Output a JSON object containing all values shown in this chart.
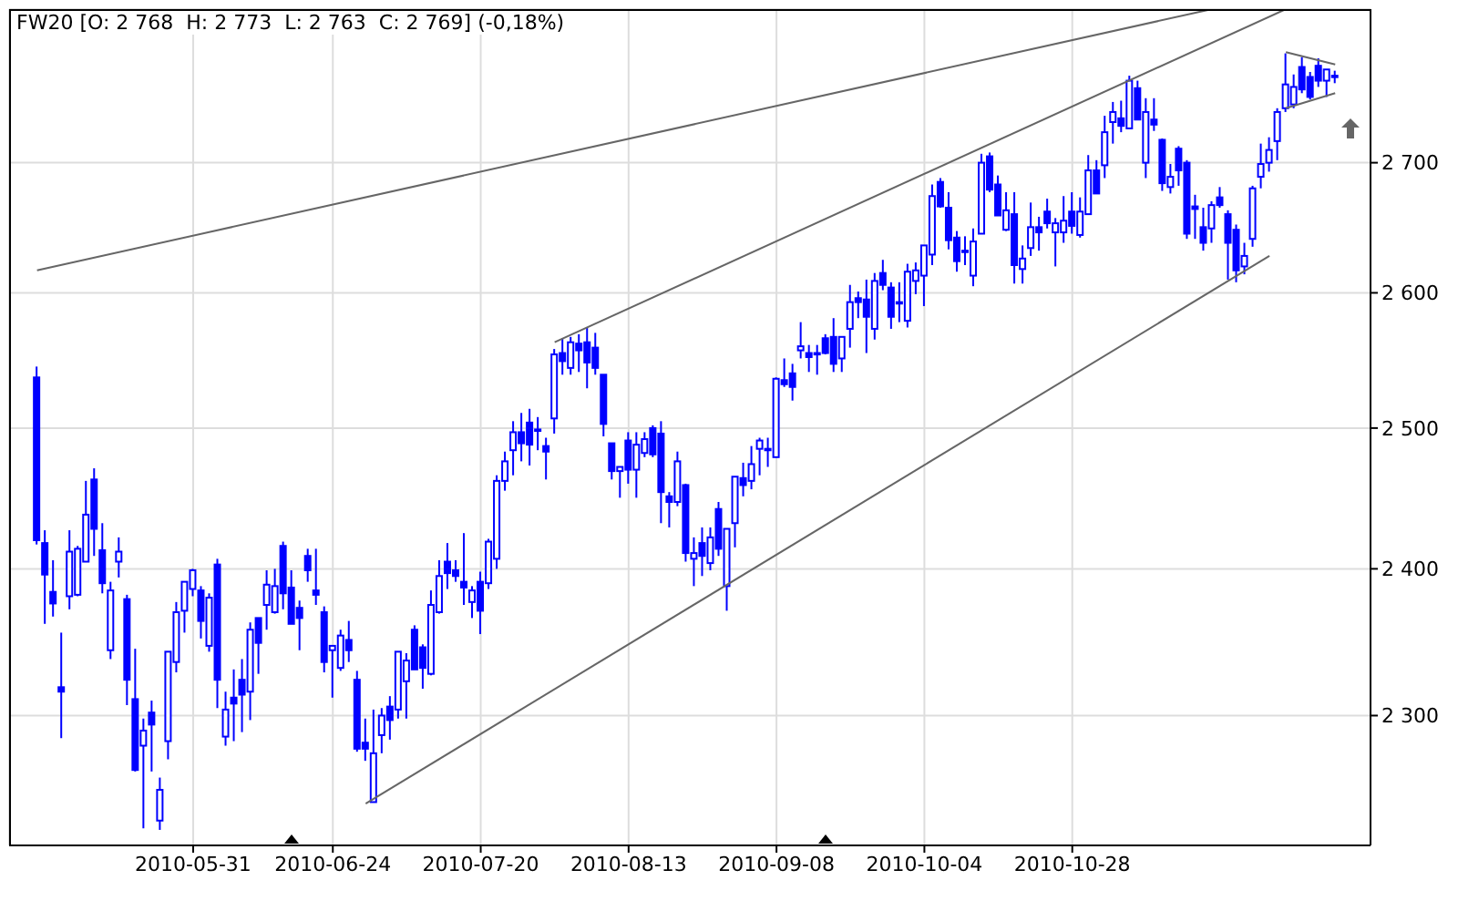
{
  "chart_data": {
    "type": "candlestick",
    "title": "FW20 [O: 2 768  H: 2 773  L: 2 763  C: 2 769] (-0,18%)",
    "color": "#0000ff",
    "log": "y",
    "grid": true,
    "categories": [
      null,
      null,
      null,
      null,
      null,
      null,
      null,
      null,
      null,
      null,
      null,
      null,
      null,
      null,
      null,
      null,
      null,
      null,
      null,
      "2010-05-31",
      null,
      null,
      null,
      null,
      null,
      null,
      null,
      null,
      null,
      null,
      null,
      null,
      null,
      null,
      null,
      null,
      "2010-06-24",
      null,
      null,
      null,
      null,
      null,
      null,
      null,
      null,
      null,
      null,
      null,
      null,
      null,
      null,
      null,
      null,
      null,
      "2010-07-20",
      null,
      null,
      null,
      null,
      null,
      null,
      null,
      null,
      null,
      null,
      null,
      null,
      null,
      null,
      null,
      null,
      null,
      "2010-08-13",
      null,
      null,
      null,
      null,
      null,
      null,
      null,
      null,
      null,
      null,
      null,
      null,
      null,
      null,
      null,
      null,
      null,
      "2010-09-08",
      null,
      null,
      null,
      null,
      null,
      null,
      null,
      null,
      null,
      null,
      null,
      null,
      null,
      null,
      null,
      null,
      null,
      "2010-10-04",
      null,
      null,
      null,
      null,
      null,
      null,
      null,
      null,
      null,
      null,
      null,
      null,
      null,
      null,
      null,
      null,
      null,
      "2010-10-28",
      null,
      null,
      null,
      null,
      null,
      null,
      null,
      null,
      null,
      null,
      null,
      null,
      null,
      null,
      null,
      null,
      null,
      null,
      null,
      null,
      null,
      null,
      null,
      null,
      null,
      null,
      null,
      null,
      null,
      null,
      null,
      null
    ],
    "ohlc": [
      [
        2537,
        2545,
        2417,
        2420
      ],
      [
        2418,
        2427,
        2362,
        2396
      ],
      [
        2384,
        2406,
        2367,
        2376
      ],
      [
        2319,
        2356,
        2285,
        2316
      ],
      [
        2381,
        2427,
        2372,
        2412
      ],
      [
        2382,
        2416,
        2381,
        2414
      ],
      [
        2405,
        2462,
        2405,
        2438
      ],
      [
        2463,
        2471,
        2409,
        2428
      ],
      [
        2413,
        2432,
        2383,
        2390
      ],
      [
        2344,
        2391,
        2338,
        2385
      ],
      [
        2405,
        2422,
        2394,
        2412
      ],
      [
        2379,
        2382,
        2307,
        2324
      ],
      [
        2311,
        2345,
        2263,
        2264
      ],
      [
        2280,
        2298,
        2226,
        2290
      ],
      [
        2302,
        2310,
        2263,
        2294
      ],
      [
        2231,
        2259,
        2225,
        2251
      ],
      [
        2283,
        2343,
        2271,
        2343
      ],
      [
        2336,
        2377,
        2329,
        2370
      ],
      [
        2371,
        2391,
        2356,
        2391
      ],
      [
        2386,
        2400,
        2381,
        2399
      ],
      [
        2385,
        2388,
        2352,
        2364
      ],
      [
        2347,
        2383,
        2343,
        2380
      ],
      [
        2403,
        2407,
        2305,
        2324
      ],
      [
        2286,
        2316,
        2280,
        2304
      ],
      [
        2312,
        2331,
        2283,
        2308
      ],
      [
        2324,
        2338,
        2289,
        2314
      ],
      [
        2316,
        2363,
        2297,
        2358
      ],
      [
        2366,
        2366,
        2328,
        2349
      ],
      [
        2375,
        2399,
        2358,
        2389
      ],
      [
        2370,
        2400,
        2369,
        2388
      ],
      [
        2416,
        2419,
        2372,
        2383
      ],
      [
        2387,
        2399,
        2362,
        2362
      ],
      [
        2373,
        2378,
        2344,
        2366
      ],
      [
        2409,
        2414,
        2391,
        2399
      ],
      [
        2385,
        2414,
        2375,
        2382
      ],
      [
        2370,
        2374,
        2329,
        2336
      ],
      [
        2344,
        2347,
        2312,
        2347
      ],
      [
        2332,
        2358,
        2330,
        2354
      ],
      [
        2351,
        2364,
        2336,
        2344
      ],
      [
        2324,
        2330,
        2276,
        2278
      ],
      [
        2282,
        2298,
        2270,
        2278
      ],
      [
        2243,
        2304,
        2243,
        2275
      ],
      [
        2287,
        2305,
        2275,
        2300
      ],
      [
        2306,
        2313,
        2284,
        2297
      ],
      [
        2304,
        2343,
        2298,
        2343
      ],
      [
        2323,
        2342,
        2298,
        2337
      ],
      [
        2358,
        2361,
        2331,
        2331
      ],
      [
        2346,
        2348,
        2318,
        2332
      ],
      [
        2328,
        2385,
        2327,
        2375
      ],
      [
        2370,
        2406,
        2369,
        2395
      ],
      [
        2405,
        2418,
        2386,
        2397
      ],
      [
        2399,
        2406,
        2391,
        2395
      ],
      [
        2391,
        2425,
        2375,
        2387
      ],
      [
        2377,
        2388,
        2366,
        2385
      ],
      [
        2391,
        2398,
        2355,
        2371
      ],
      [
        2390,
        2421,
        2386,
        2419
      ],
      [
        2407,
        2466,
        2400,
        2462
      ],
      [
        2462,
        2483,
        2455,
        2476
      ],
      [
        2484,
        2505,
        2466,
        2497
      ],
      [
        2497,
        2511,
        2476,
        2489
      ],
      [
        2504,
        2514,
        2473,
        2488
      ],
      [
        2499,
        2508,
        2484,
        2498
      ],
      [
        2487,
        2493,
        2463,
        2483
      ],
      [
        2507,
        2558,
        2496,
        2554
      ],
      [
        2555,
        2566,
        2539,
        2549
      ],
      [
        2544,
        2567,
        2539,
        2563
      ],
      [
        2562,
        2569,
        2541,
        2557
      ],
      [
        2563,
        2574,
        2529,
        2548
      ],
      [
        2559,
        2570,
        2539,
        2544
      ],
      [
        2539,
        2539,
        2494,
        2503
      ],
      [
        2489,
        2489,
        2463,
        2469
      ],
      [
        2469,
        2472,
        2450,
        2472
      ],
      [
        2491,
        2497,
        2460,
        2470
      ],
      [
        2470,
        2497,
        2450,
        2488
      ],
      [
        2482,
        2497,
        2479,
        2492
      ],
      [
        2500,
        2502,
        2479,
        2481
      ],
      [
        2496,
        2505,
        2432,
        2454
      ],
      [
        2451,
        2454,
        2429,
        2447
      ],
      [
        2447,
        2483,
        2444,
        2476
      ],
      [
        2459,
        2460,
        2405,
        2411
      ],
      [
        2407,
        2422,
        2388,
        2411
      ],
      [
        2418,
        2429,
        2395,
        2409
      ],
      [
        2404,
        2429,
        2399,
        2422
      ],
      [
        2442,
        2447,
        2409,
        2414
      ],
      [
        2388,
        2428,
        2371,
        2428
      ],
      [
        2432,
        2465,
        2415,
        2465
      ],
      [
        2464,
        2475,
        2451,
        2459
      ],
      [
        2462,
        2487,
        2456,
        2474
      ],
      [
        2485,
        2493,
        2466,
        2491
      ],
      [
        2484,
        2493,
        2472,
        2485
      ],
      [
        2479,
        2537,
        2479,
        2536
      ],
      [
        2535,
        2551,
        2530,
        2532
      ],
      [
        2540,
        2547,
        2520,
        2530
      ],
      [
        2557,
        2578,
        2551,
        2560
      ],
      [
        2555,
        2561,
        2541,
        2552
      ],
      [
        2555,
        2561,
        2539,
        2554
      ],
      [
        2566,
        2569,
        2554,
        2555
      ],
      [
        2567,
        2581,
        2541,
        2547
      ],
      [
        2551,
        2567,
        2541,
        2567
      ],
      [
        2573,
        2606,
        2559,
        2593
      ],
      [
        2596,
        2601,
        2581,
        2593
      ],
      [
        2595,
        2610,
        2555,
        2582
      ],
      [
        2573,
        2615,
        2565,
        2609
      ],
      [
        2615,
        2625,
        2602,
        2606
      ],
      [
        2604,
        2608,
        2573,
        2582
      ],
      [
        2593,
        2608,
        2578,
        2593
      ],
      [
        2579,
        2622,
        2574,
        2616
      ],
      [
        2609,
        2623,
        2599,
        2617
      ],
      [
        2613,
        2636,
        2590,
        2636
      ],
      [
        2629,
        2683,
        2621,
        2674
      ],
      [
        2685,
        2688,
        2665,
        2666
      ],
      [
        2665,
        2677,
        2633,
        2640
      ],
      [
        2642,
        2647,
        2616,
        2624
      ],
      [
        2632,
        2643,
        2621,
        2632
      ],
      [
        2613,
        2649,
        2605,
        2639
      ],
      [
        2645,
        2707,
        2645,
        2700
      ],
      [
        2705,
        2708,
        2677,
        2679
      ],
      [
        2683,
        2690,
        2659,
        2659
      ],
      [
        2648,
        2677,
        2647,
        2663
      ],
      [
        2660,
        2677,
        2607,
        2621
      ],
      [
        2618,
        2636,
        2607,
        2626
      ],
      [
        2634,
        2669,
        2628,
        2650
      ],
      [
        2650,
        2658,
        2632,
        2646
      ],
      [
        2662,
        2672,
        2649,
        2653
      ],
      [
        2646,
        2657,
        2620,
        2653
      ],
      [
        2646,
        2674,
        2638,
        2655
      ],
      [
        2662,
        2677,
        2645,
        2651
      ],
      [
        2644,
        2673,
        2642,
        2662
      ],
      [
        2660,
        2706,
        2660,
        2694
      ],
      [
        2694,
        2702,
        2676,
        2676
      ],
      [
        2698,
        2737,
        2688,
        2724
      ],
      [
        2732,
        2748,
        2715,
        2740
      ],
      [
        2735,
        2749,
        2724,
        2729
      ],
      [
        2727,
        2769,
        2727,
        2765
      ],
      [
        2759,
        2765,
        2734,
        2734
      ],
      [
        2700,
        2751,
        2688,
        2740
      ],
      [
        2734,
        2751,
        2725,
        2730
      ],
      [
        2718,
        2719,
        2678,
        2684
      ],
      [
        2681,
        2699,
        2676,
        2689
      ],
      [
        2711,
        2713,
        2682,
        2694
      ],
      [
        2700,
        2702,
        2641,
        2645
      ],
      [
        2666,
        2675,
        2641,
        2664
      ],
      [
        2650,
        2665,
        2632,
        2638
      ],
      [
        2649,
        2670,
        2638,
        2667
      ],
      [
        2673,
        2681,
        2665,
        2667
      ],
      [
        2660,
        2663,
        2610,
        2638
      ],
      [
        2648,
        2652,
        2608,
        2617
      ],
      [
        2620,
        2638,
        2614,
        2628
      ],
      [
        2641,
        2682,
        2635,
        2680
      ],
      [
        2689,
        2715,
        2680,
        2699
      ],
      [
        2700,
        2720,
        2693,
        2710
      ],
      [
        2717,
        2743,
        2702,
        2740
      ],
      [
        2743,
        2787,
        2740,
        2762
      ],
      [
        2746,
        2770,
        2743,
        2760
      ],
      [
        2776,
        2784,
        2755,
        2758
      ],
      [
        2768,
        2772,
        2750,
        2752
      ],
      [
        2777,
        2783,
        2760,
        2765
      ],
      [
        2765,
        2774,
        2752,
        2774
      ],
      [
        2768,
        2773,
        2763,
        2769
      ]
    ],
    "series": [
      {
        "type": "line",
        "color": "#666666",
        "values": [
          2617,
          null,
          null,
          null,
          null,
          null,
          null,
          null,
          null,
          null,
          null,
          null,
          null,
          null,
          null,
          null,
          null,
          null,
          null,
          null,
          null,
          null,
          null,
          null,
          null,
          null,
          null,
          null,
          null,
          null,
          null,
          null,
          null,
          null,
          null,
          null,
          null,
          null,
          null,
          null,
          null,
          null,
          null,
          null,
          null,
          null,
          null,
          null,
          null,
          null,
          null,
          null,
          null,
          null,
          null,
          null,
          null,
          null,
          null,
          null,
          null,
          null,
          null,
          null,
          null,
          null,
          null,
          null,
          null,
          null,
          null,
          null,
          null,
          null,
          null,
          null,
          null,
          null,
          null,
          null,
          null,
          null,
          null,
          null,
          null,
          null,
          null,
          null,
          null,
          null,
          null,
          null,
          null,
          null,
          null,
          null,
          null,
          null,
          null,
          null,
          null,
          null,
          null,
          null,
          null,
          null,
          null,
          null,
          null,
          null,
          null,
          null,
          null,
          null,
          null,
          null,
          null,
          null,
          null,
          null,
          null,
          null,
          null,
          null,
          null,
          null,
          null,
          null,
          null,
          null,
          null,
          null,
          null,
          null,
          null,
          null,
          null,
          null,
          null,
          null,
          null,
          null,
          null,
          2823,
          null,
          null,
          null,
          null,
          null,
          null,
          null,
          null,
          null,
          null,
          null,
          null,
          null,
          null,
          null
        ]
      },
      {
        "type": "line",
        "color": "#666666",
        "values": [
          null,
          null,
          null,
          null,
          null,
          null,
          null,
          null,
          null,
          null,
          null,
          null,
          null,
          null,
          null,
          null,
          null,
          null,
          null,
          null,
          null,
          null,
          null,
          null,
          null,
          null,
          null,
          null,
          null,
          null,
          null,
          null,
          null,
          null,
          null,
          null,
          null,
          null,
          null,
          null,
          null,
          null,
          null,
          null,
          null,
          null,
          null,
          null,
          null,
          null,
          null,
          null,
          null,
          null,
          null,
          null,
          null,
          null,
          null,
          null,
          null,
          null,
          null,
          2563,
          null,
          null,
          null,
          null,
          null,
          null,
          null,
          null,
          null,
          null,
          null,
          null,
          null,
          null,
          null,
          null,
          null,
          null,
          null,
          null,
          null,
          null,
          null,
          null,
          null,
          null,
          null,
          null,
          null,
          null,
          null,
          null,
          null,
          null,
          null,
          null,
          null,
          null,
          null,
          null,
          null,
          null,
          null,
          null,
          null,
          null,
          null,
          null,
          null,
          null,
          null,
          null,
          null,
          null,
          null,
          null,
          null,
          null,
          null,
          null,
          null,
          null,
          null,
          null,
          null,
          null,
          null,
          null,
          null,
          null,
          null,
          null,
          null,
          null,
          null,
          null,
          null,
          null,
          null,
          null,
          null,
          null,
          null,
          null,
          null,
          null,
          null,
          null,
          2823,
          null,
          null,
          null,
          null,
          null,
          null
        ]
      },
      {
        "type": "line",
        "color": "#666666",
        "values": [
          null,
          null,
          null,
          null,
          null,
          null,
          null,
          null,
          null,
          null,
          null,
          null,
          null,
          null,
          null,
          null,
          null,
          null,
          null,
          null,
          null,
          null,
          null,
          null,
          null,
          null,
          null,
          null,
          null,
          null,
          null,
          null,
          null,
          null,
          null,
          null,
          null,
          null,
          null,
          null,
          2242,
          null,
          null,
          null,
          null,
          null,
          null,
          null,
          null,
          null,
          null,
          null,
          null,
          null,
          null,
          null,
          null,
          null,
          null,
          null,
          null,
          null,
          null,
          null,
          null,
          null,
          null,
          null,
          null,
          null,
          null,
          null,
          null,
          null,
          null,
          null,
          null,
          null,
          null,
          null,
          null,
          null,
          null,
          null,
          null,
          null,
          null,
          null,
          null,
          null,
          null,
          null,
          null,
          null,
          null,
          null,
          null,
          null,
          null,
          null,
          null,
          null,
          null,
          null,
          null,
          null,
          null,
          null,
          null,
          null,
          null,
          null,
          null,
          null,
          null,
          null,
          null,
          null,
          null,
          null,
          null,
          null,
          null,
          null,
          null,
          null,
          null,
          null,
          null,
          null,
          null,
          null,
          null,
          null,
          null,
          null,
          null,
          null,
          null,
          null,
          null,
          null,
          null,
          null,
          null,
          null,
          null,
          null,
          null,
          null,
          2628,
          null,
          null,
          null,
          null,
          null,
          null,
          null,
          null
        ]
      },
      {
        "type": "line",
        "color": "#666666",
        "values": [
          null,
          null,
          null,
          null,
          null,
          null,
          null,
          null,
          null,
          null,
          null,
          null,
          null,
          null,
          null,
          null,
          null,
          null,
          null,
          null,
          null,
          null,
          null,
          null,
          null,
          null,
          null,
          null,
          null,
          null,
          null,
          null,
          null,
          null,
          null,
          null,
          null,
          null,
          null,
          null,
          null,
          null,
          null,
          null,
          null,
          null,
          null,
          null,
          null,
          null,
          null,
          null,
          null,
          null,
          null,
          null,
          null,
          null,
          null,
          null,
          null,
          null,
          null,
          null,
          null,
          null,
          null,
          null,
          null,
          null,
          null,
          null,
          null,
          null,
          null,
          null,
          null,
          null,
          null,
          null,
          null,
          null,
          null,
          null,
          null,
          null,
          null,
          null,
          null,
          null,
          null,
          null,
          null,
          null,
          null,
          null,
          null,
          null,
          null,
          null,
          null,
          null,
          null,
          null,
          null,
          null,
          null,
          null,
          null,
          null,
          null,
          null,
          null,
          null,
          null,
          null,
          null,
          null,
          null,
          null,
          null,
          null,
          null,
          null,
          null,
          null,
          null,
          null,
          null,
          null,
          null,
          null,
          null,
          null,
          null,
          null,
          null,
          null,
          null,
          null,
          null,
          null,
          null,
          null,
          null,
          null,
          null,
          null,
          null,
          null,
          null,
          null,
          2788,
          null,
          null,
          null,
          null,
          null,
          2778
        ]
      },
      {
        "type": "line",
        "color": "#666666",
        "values": [
          null,
          null,
          null,
          null,
          null,
          null,
          null,
          null,
          null,
          null,
          null,
          null,
          null,
          null,
          null,
          null,
          null,
          null,
          null,
          null,
          null,
          null,
          null,
          null,
          null,
          null,
          null,
          null,
          null,
          null,
          null,
          null,
          null,
          null,
          null,
          null,
          null,
          null,
          null,
          null,
          null,
          null,
          null,
          null,
          null,
          null,
          null,
          null,
          null,
          null,
          null,
          null,
          null,
          null,
          null,
          null,
          null,
          null,
          null,
          null,
          null,
          null,
          null,
          null,
          null,
          null,
          null,
          null,
          null,
          null,
          null,
          null,
          null,
          null,
          null,
          null,
          null,
          null,
          null,
          null,
          null,
          null,
          null,
          null,
          null,
          null,
          null,
          null,
          null,
          null,
          null,
          null,
          null,
          null,
          null,
          null,
          null,
          null,
          null,
          null,
          null,
          null,
          null,
          null,
          null,
          null,
          null,
          null,
          null,
          null,
          null,
          null,
          null,
          null,
          null,
          null,
          null,
          null,
          null,
          null,
          null,
          null,
          null,
          null,
          null,
          null,
          null,
          null,
          null,
          null,
          null,
          null,
          null,
          null,
          null,
          null,
          null,
          null,
          null,
          null,
          null,
          null,
          null,
          null,
          null,
          null,
          null,
          null,
          null,
          null,
          null,
          null,
          2743,
          null,
          null,
          null,
          null,
          null,
          2755
        ]
      }
    ],
    "ylim": [
      2215,
      2823
    ],
    "yticks": [
      {
        "value": 2300,
        "label": "2 300"
      },
      {
        "value": 2400,
        "label": "2 400"
      },
      {
        "value": 2500,
        "label": "2 500"
      },
      {
        "value": 2600,
        "label": "2 600"
      },
      {
        "value": 2700,
        "label": "2 700"
      }
    ]
  }
}
